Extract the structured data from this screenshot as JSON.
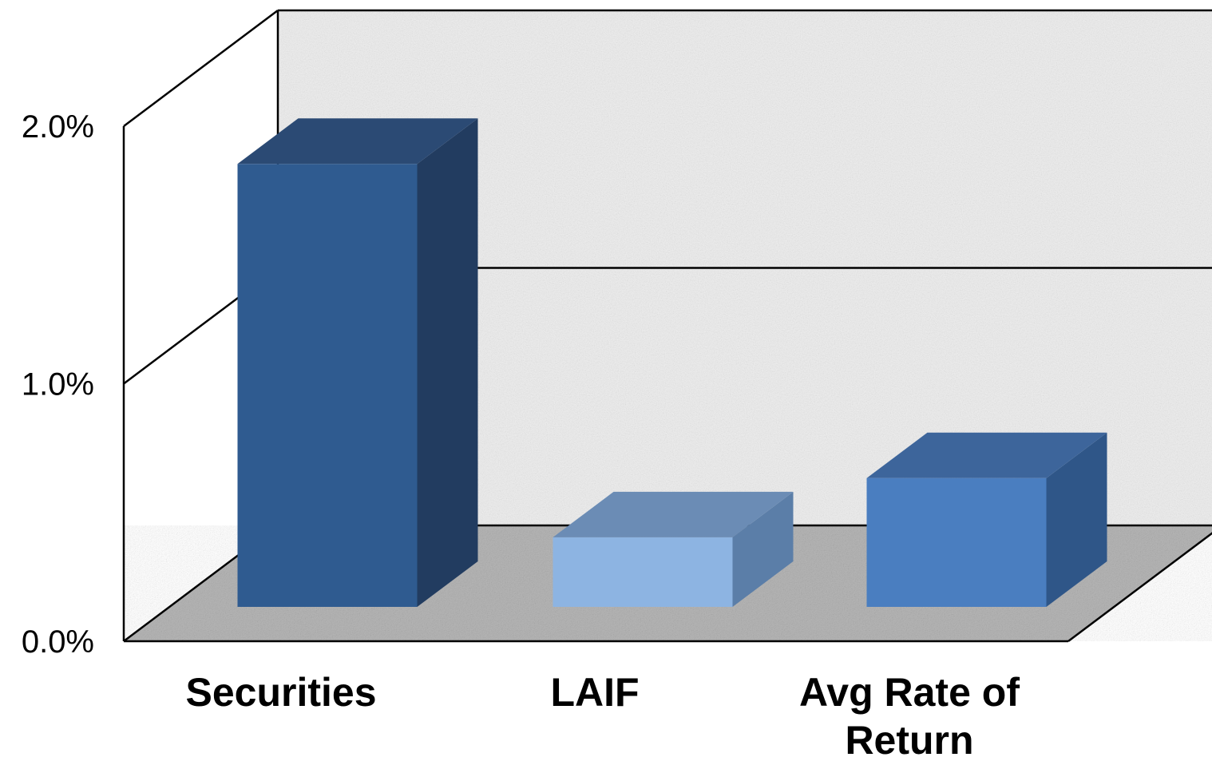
{
  "chart_data": {
    "type": "bar",
    "style": "3d",
    "categories": [
      "Securities",
      "LAIF",
      "Avg Rate of Return"
    ],
    "category_label_lines": [
      [
        "Securities"
      ],
      [
        "LAIF"
      ],
      [
        "Avg Rate of",
        "Return"
      ]
    ],
    "values": [
      1.72,
      0.27,
      0.5
    ],
    "value_unit": "%",
    "ylim": [
      0.0,
      2.0
    ],
    "yticks": [
      0.0,
      1.0,
      2.0
    ],
    "ytick_labels": [
      "0.0%",
      "1.0%",
      "2.0%"
    ],
    "grid": true,
    "legend": false,
    "title": "",
    "xlabel": "",
    "ylabel": "",
    "colors": {
      "Securities": {
        "front": "#2f5b90",
        "side": "#223c60",
        "top": "#2b4a74"
      },
      "LAIF": {
        "front": "#8db4e2",
        "side": "#5b7ea8",
        "top": "#6b8cb5"
      },
      "Avg Rate of Return": {
        "front": "#4a7ec0",
        "side": "#2f5688",
        "top": "#3d659b"
      },
      "back_wall": "#ededed",
      "floor": "#b5b5b5"
    }
  }
}
